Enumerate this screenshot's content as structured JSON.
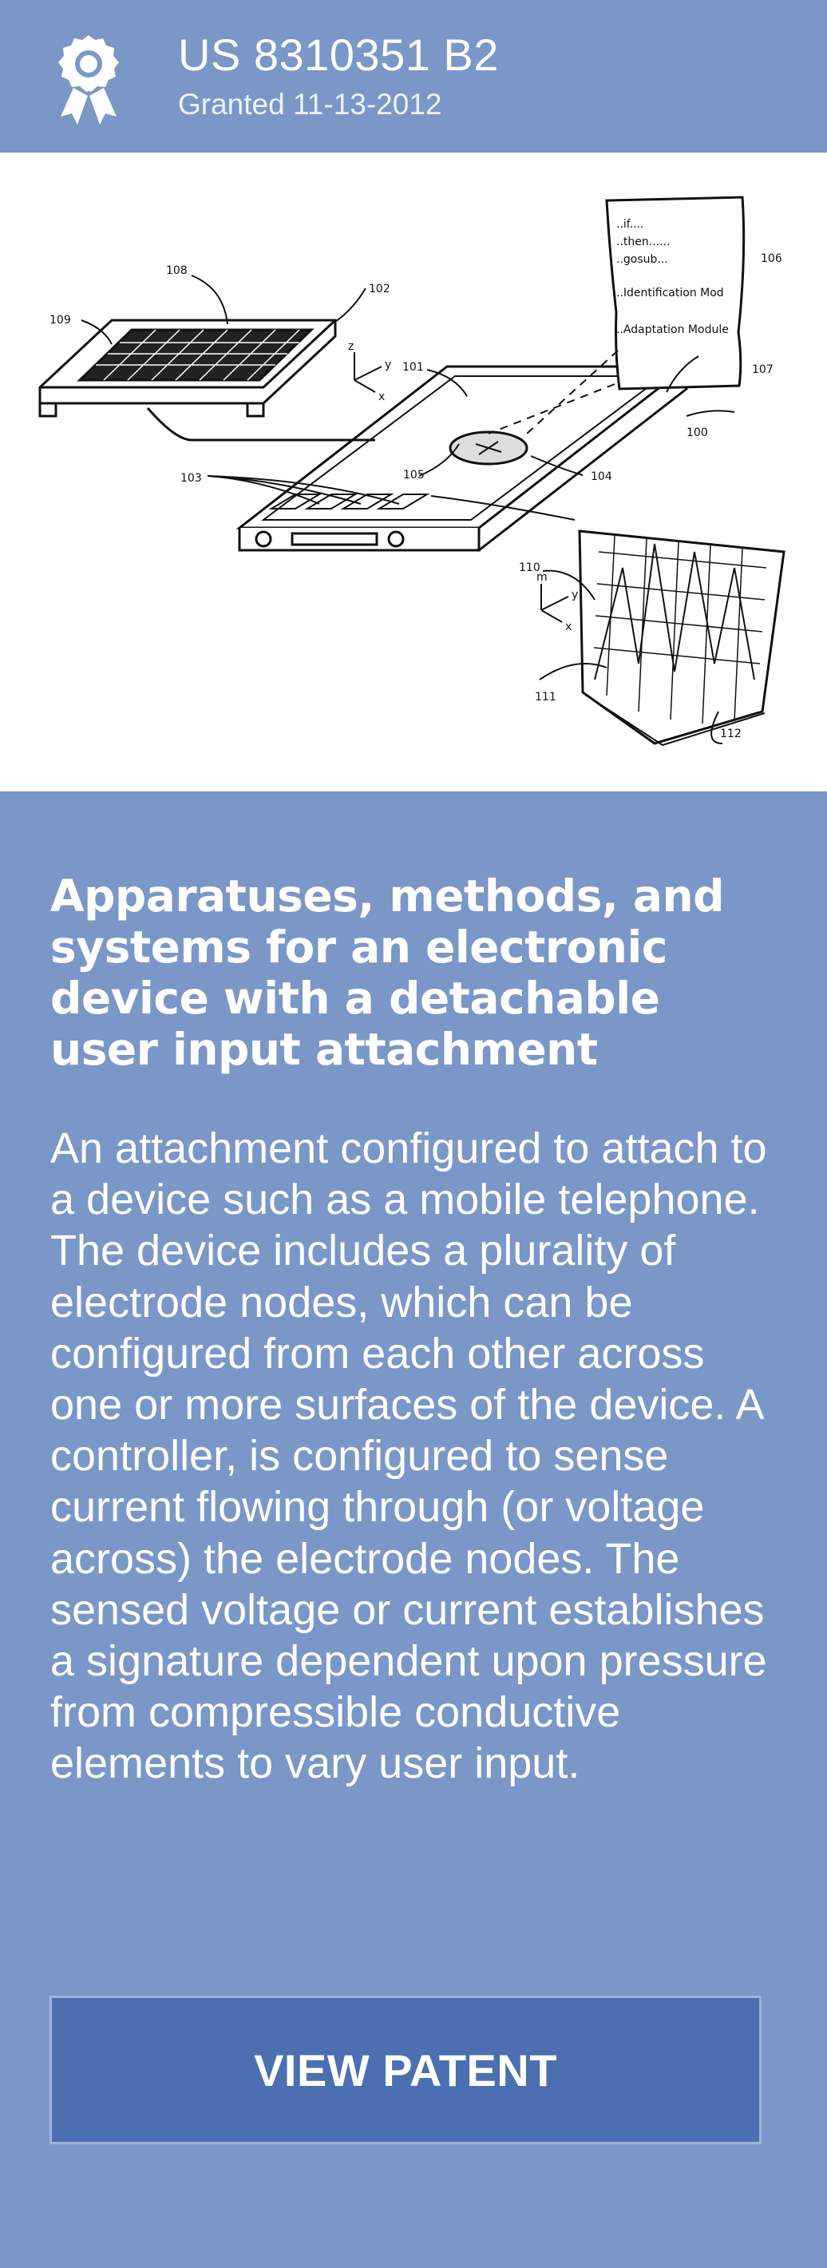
{
  "header": {
    "icon": "award-ribbon-icon",
    "patent_number": "US 8310351 B2",
    "granted": "Granted 11-13-2012"
  },
  "drawing": {
    "labels": {
      "l100": "100",
      "l101": "101",
      "l102": "102",
      "l103": "103",
      "l104": "104",
      "l105": "105",
      "l106": "106",
      "l107": "107",
      "l108": "108",
      "l109": "109",
      "l110": "110",
      "l111": "111",
      "l112": "112"
    },
    "axes": {
      "x": "x",
      "y": "y",
      "z": "z",
      "m": "m"
    },
    "code": {
      "line1": "..if....",
      "line2": "..then......",
      "line3": "..gosub...",
      "line4": "..Identification Mod",
      "line5": "..Adaptation Module"
    }
  },
  "title": "Apparatuses, methods, and systems for an electronic device with a detachable user input attachment",
  "abstract": "An attachment configured to attach to a device such as a mobile telephone. The device includes a plurality of electrode nodes, which can be configured from each other across one or more surfaces of the device. A controller, is configured to sense current flowing through (or voltage across) the electrode nodes. The sensed voltage or current establishes a signature dependent upon pressure from compressible conductive elements to vary user input.",
  "button": {
    "label": "VIEW PATENT"
  },
  "colors": {
    "background": "#7a97c7",
    "button": "#4b6fb0",
    "text": "#ffffff"
  }
}
